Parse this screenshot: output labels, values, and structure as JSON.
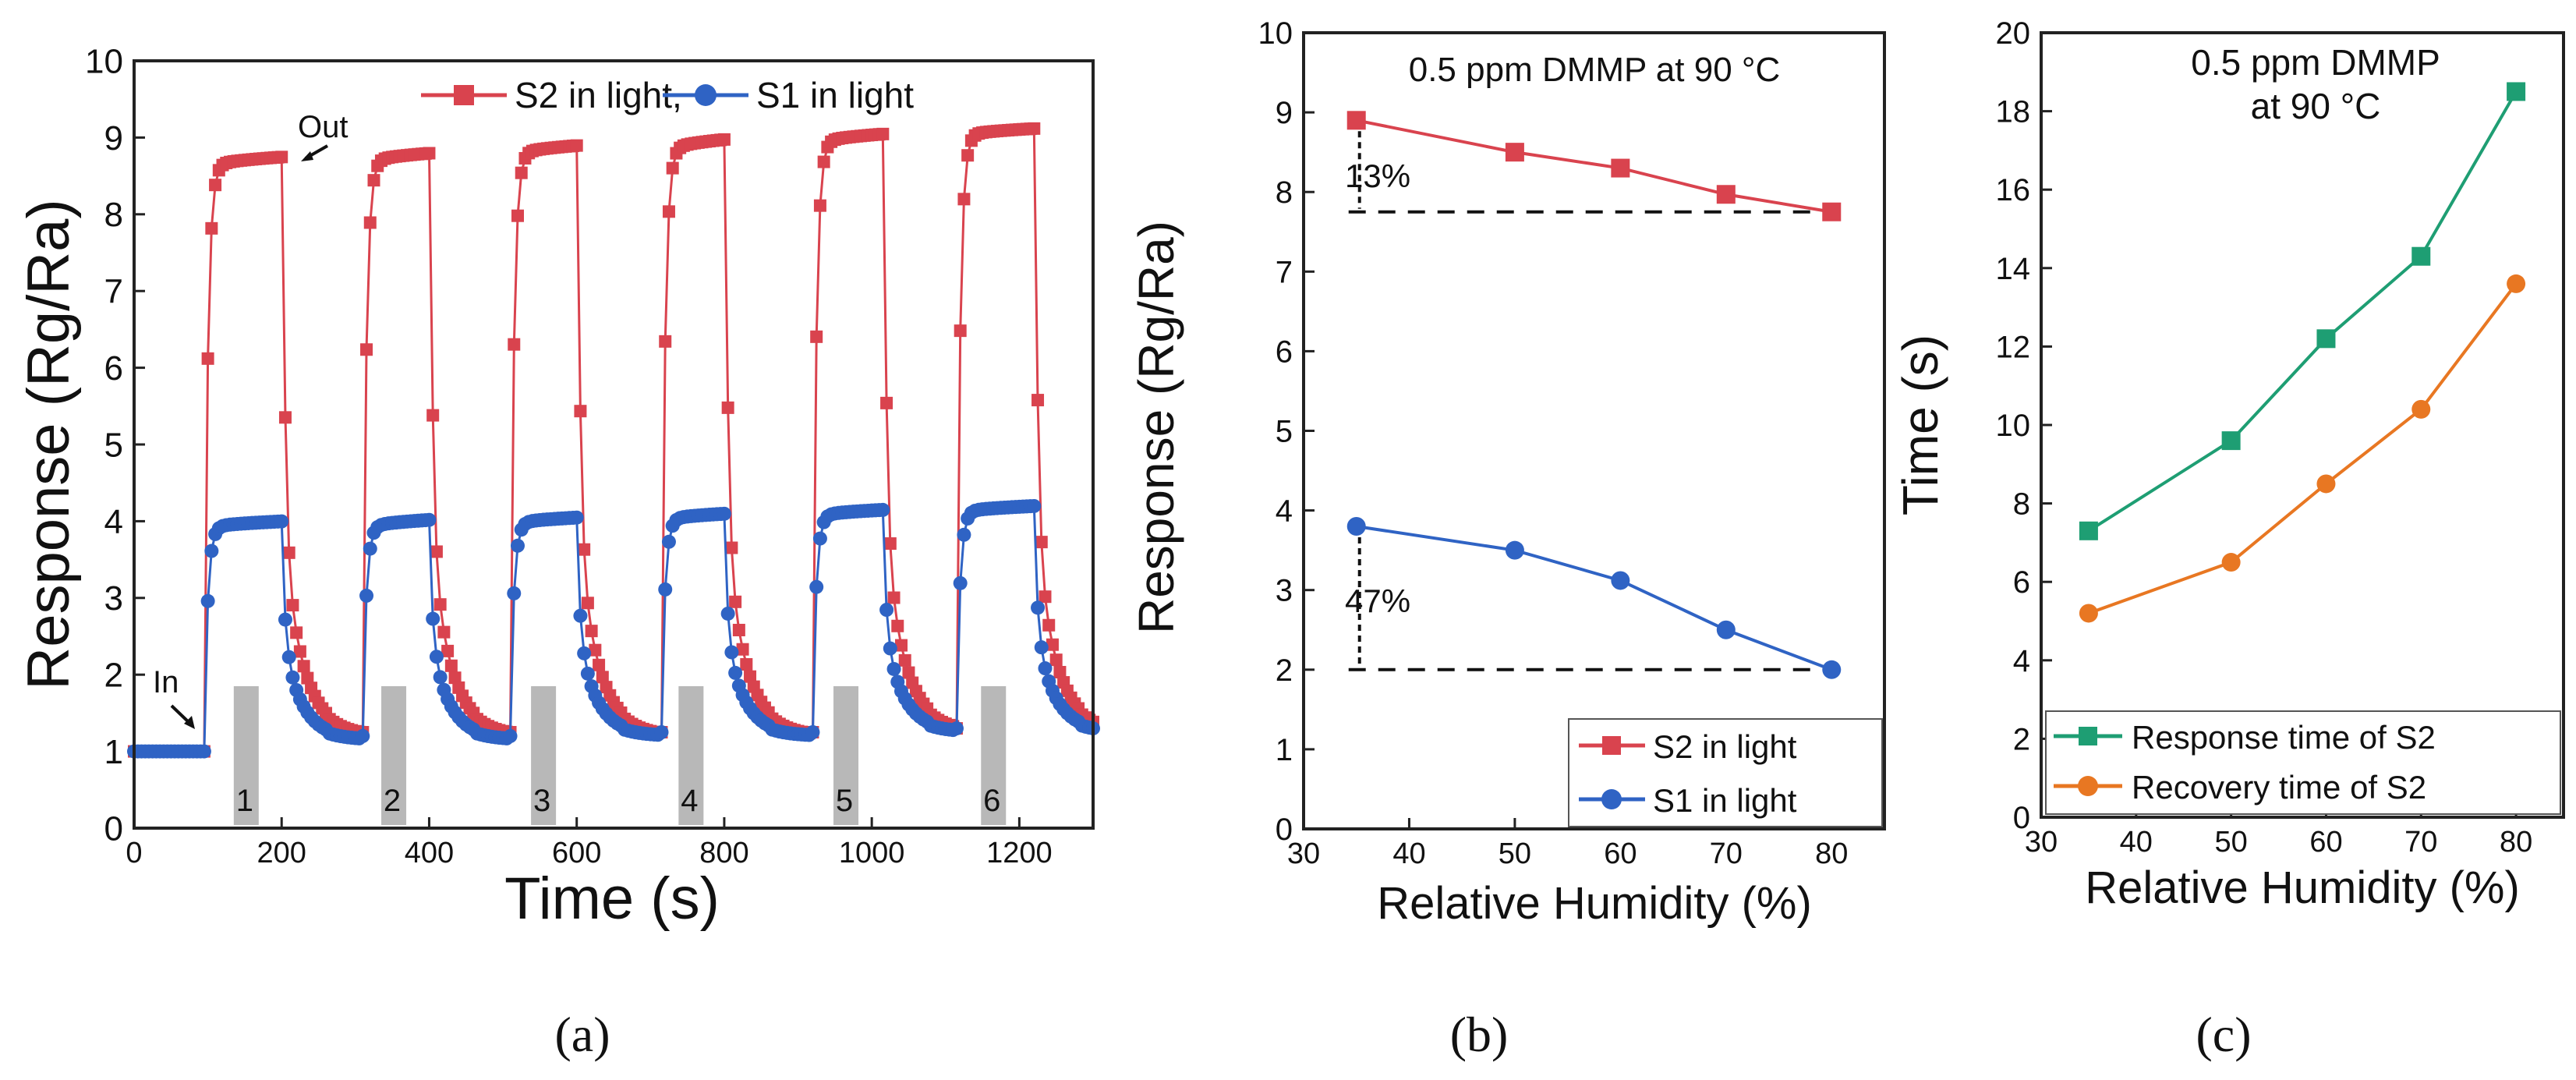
{
  "figure": {
    "panel_labels": [
      "(a)",
      "(b)",
      "(c)"
    ]
  },
  "chart_data": [
    {
      "panel": "a",
      "type": "line",
      "title": "",
      "xlabel": "Time (s)",
      "ylabel": "Response (Rg/Ra)",
      "xlim": [
        0,
        1300
      ],
      "ylim": [
        0,
        10
      ],
      "xticks": [
        0,
        200,
        400,
        600,
        800,
        1000,
        1200
      ],
      "yticks": [
        0,
        1,
        2,
        3,
        4,
        5,
        6,
        7,
        8,
        9,
        10
      ],
      "legend": "top-center",
      "series": [
        {
          "name": "S2 in light,",
          "color": "#d9434e",
          "marker": "square",
          "baselines": [
            1.0,
            1.2,
            1.2,
            1.2,
            1.2,
            1.25
          ],
          "cycles": [
            {
              "on": 95,
              "off": 205,
              "plateau_start": 8.6,
              "plateau_end": 8.75
            },
            {
              "on": 310,
              "off": 405,
              "plateau_start": 8.65,
              "plateau_end": 8.8
            },
            {
              "on": 510,
              "off": 605,
              "plateau_start": 8.75,
              "plateau_end": 8.9
            },
            {
              "on": 715,
              "off": 805,
              "plateau_start": 8.8,
              "plateau_end": 8.98
            },
            {
              "on": 920,
              "off": 1020,
              "plateau_start": 8.9,
              "plateau_end": 9.05
            },
            {
              "on": 1115,
              "off": 1225,
              "plateau_start": 9.0,
              "plateau_end": 9.12
            }
          ]
        },
        {
          "name": "S1 in light",
          "color": "#2f63c4",
          "marker": "circle",
          "baselines": [
            1.0,
            1.15,
            1.15,
            1.2,
            1.2,
            1.25
          ],
          "cycles": [
            {
              "on": 95,
              "off": 205,
              "plateau_start": 3.9,
              "plateau_end": 4.0
            },
            {
              "on": 310,
              "off": 405,
              "plateau_start": 3.9,
              "plateau_end": 4.02
            },
            {
              "on": 510,
              "off": 605,
              "plateau_start": 3.95,
              "plateau_end": 4.05
            },
            {
              "on": 715,
              "off": 805,
              "plateau_start": 4.0,
              "plateau_end": 4.1
            },
            {
              "on": 920,
              "off": 1020,
              "plateau_start": 4.05,
              "plateau_end": 4.15
            },
            {
              "on": 1115,
              "off": 1225,
              "plateau_start": 4.1,
              "plateau_end": 4.2
            }
          ]
        }
      ],
      "gray_markers": [
        {
          "label": "1",
          "x": 152,
          "height": 1.85
        },
        {
          "label": "2",
          "x": 352,
          "height": 1.85
        },
        {
          "label": "3",
          "x": 555,
          "height": 1.85
        },
        {
          "label": "4",
          "x": 755,
          "height": 1.85
        },
        {
          "label": "5",
          "x": 965,
          "height": 1.85
        },
        {
          "label": "6",
          "x": 1165,
          "height": 1.85
        }
      ],
      "annotations": [
        {
          "text": "In",
          "x": 40,
          "y": 1.45
        },
        {
          "text": "Out",
          "x": 245,
          "y": 9.35
        }
      ]
    },
    {
      "panel": "b",
      "type": "line",
      "title": "0.5 ppm DMMP at 90 °C",
      "xlabel": "Relative Humidity (%)",
      "ylabel": "Response (Rg/Ra)",
      "xlim": [
        30,
        85
      ],
      "ylim": [
        0,
        10
      ],
      "xticks": [
        30,
        40,
        50,
        60,
        70,
        80
      ],
      "yticks": [
        0,
        1,
        2,
        3,
        4,
        5,
        6,
        7,
        8,
        9,
        10
      ],
      "legend": "bottom-right",
      "x": [
        35,
        50,
        60,
        70,
        80
      ],
      "series": [
        {
          "name": "S2 in light",
          "color": "#d9434e",
          "marker": "square",
          "values": [
            8.9,
            8.5,
            8.3,
            7.97,
            7.75
          ]
        },
        {
          "name": "S1 in light",
          "color": "#2f63c4",
          "marker": "circle",
          "values": [
            3.8,
            3.5,
            3.12,
            2.5,
            2.0
          ]
        }
      ],
      "annotations": [
        {
          "text": "13%",
          "x": 37,
          "y": 8.4
        },
        {
          "text": "47%",
          "x": 37,
          "y": 3.0
        }
      ]
    },
    {
      "panel": "c",
      "type": "line",
      "title": "0.5 ppm DMMP at 90 °C",
      "title_lines": [
        "0.5 ppm DMMP",
        "at 90 °C"
      ],
      "xlabel": "Relative Humidity (%)",
      "ylabel": "Time (s)",
      "xlim": [
        30,
        85
      ],
      "ylim": [
        0,
        20
      ],
      "xticks": [
        30,
        40,
        50,
        60,
        70,
        80
      ],
      "yticks": [
        0,
        2,
        4,
        6,
        8,
        10,
        12,
        14,
        16,
        18,
        20
      ],
      "legend": "bottom-right",
      "x": [
        35,
        50,
        60,
        70,
        80
      ],
      "series": [
        {
          "name": "Response time of S2",
          "color": "#1e9e73",
          "marker": "square",
          "values": [
            7.3,
            9.6,
            12.2,
            14.3,
            18.5
          ]
        },
        {
          "name": "Recovery time of S2",
          "color": "#e87722",
          "marker": "circle",
          "values": [
            5.2,
            6.5,
            8.5,
            10.4,
            13.6
          ]
        }
      ]
    }
  ]
}
